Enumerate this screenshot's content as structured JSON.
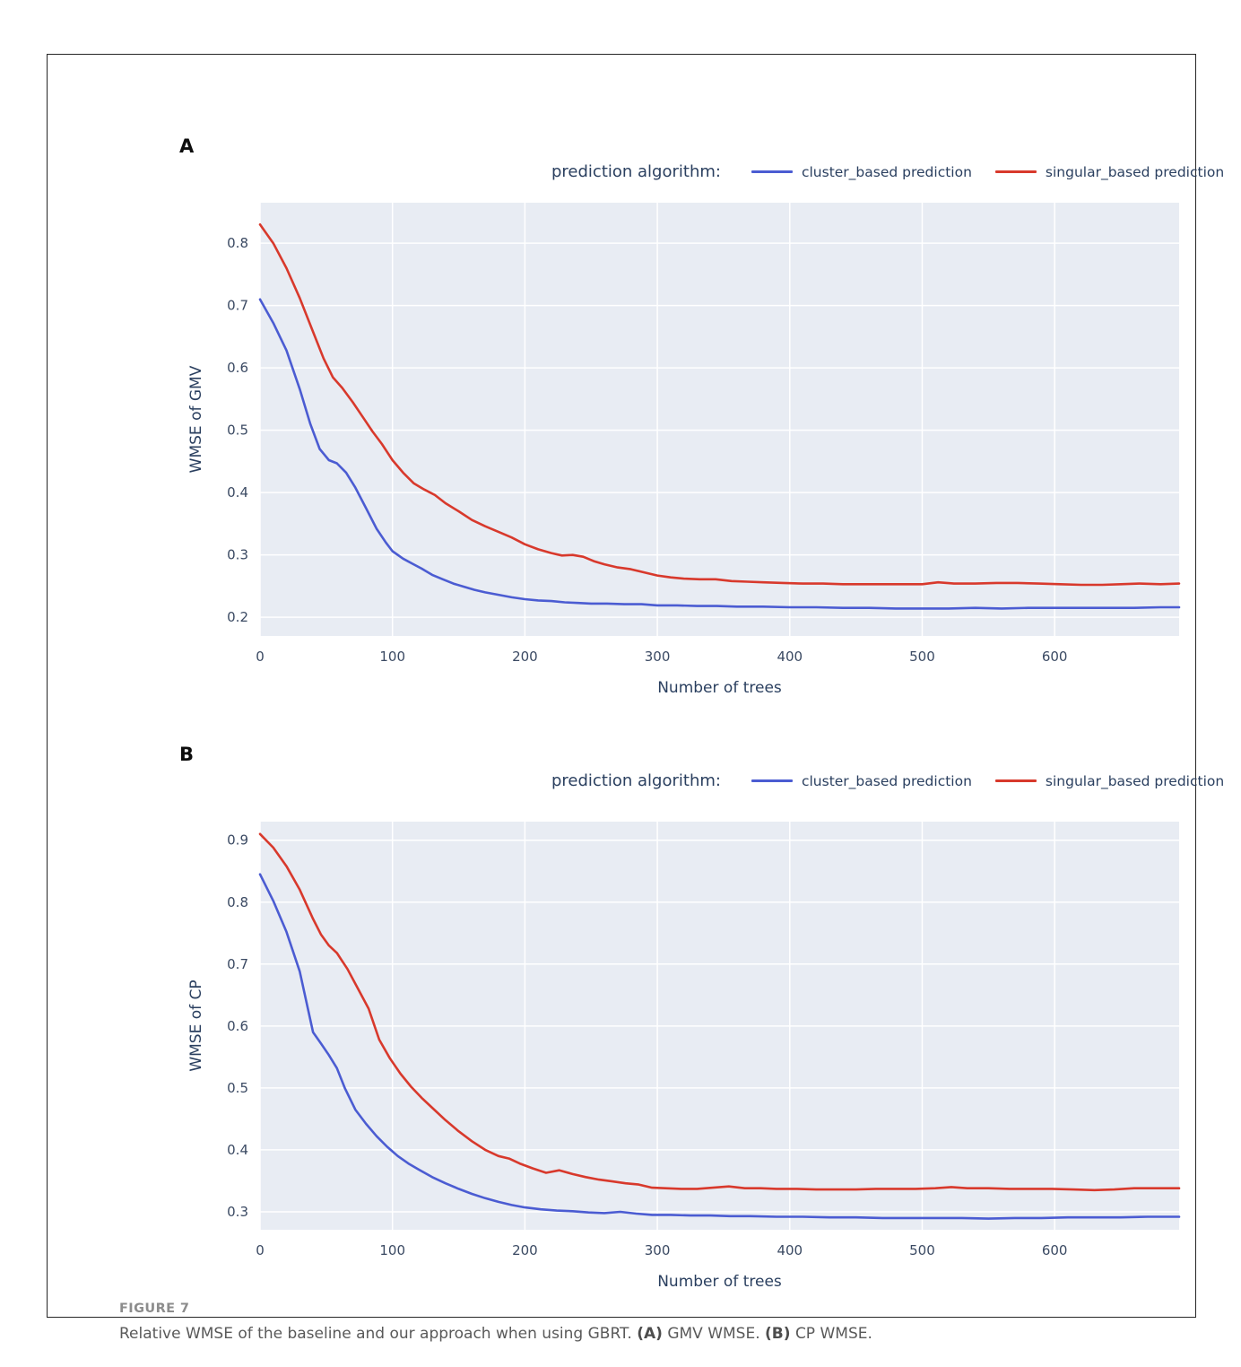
{
  "figure": {
    "panel_a_label": "A",
    "panel_b_label": "B",
    "caption_label": "FIGURE 7",
    "caption": {
      "text": "Relative WMSE of the baseline and our approach when using GBRT.",
      "a_marker": "(A)",
      "a_text": "GMV WMSE.",
      "b_marker": "(B)",
      "b_text": "CP WMSE."
    }
  },
  "legend": {
    "title": "prediction algorithm:",
    "entries": [
      {
        "label": "cluster_based prediction",
        "color": "#4b5cd2"
      },
      {
        "label": "singular_based prediction",
        "color": "#d8392c"
      }
    ]
  },
  "style": {
    "plot_bg": "#e8ecf3",
    "grid": "#ffffff",
    "axis_text": "#2a3f5f",
    "tick_text": "#3b4a63",
    "blue": "#4b5cd2",
    "red": "#d8392c"
  },
  "chart_data": [
    {
      "panel": "A",
      "type": "line",
      "xlabel": "Number of trees",
      "ylabel": "WMSE of GMV",
      "xlim": [
        0,
        694
      ],
      "ylim": [
        0.17,
        0.865
      ],
      "xticks": [
        0,
        100,
        200,
        300,
        400,
        500,
        600
      ],
      "yticks": [
        0.2,
        0.3,
        0.4,
        0.5,
        0.6,
        0.7,
        0.8
      ],
      "grid": true,
      "legend_position": "top",
      "series": [
        {
          "name": "cluster_based prediction",
          "color": "#4b5cd2",
          "x": [
            0,
            10,
            20,
            30,
            38,
            45,
            52,
            58,
            65,
            72,
            80,
            88,
            95,
            100,
            108,
            115,
            122,
            130,
            138,
            146,
            154,
            162,
            170,
            180,
            190,
            200,
            210,
            220,
            230,
            240,
            250,
            262,
            275,
            288,
            300,
            315,
            330,
            345,
            360,
            380,
            400,
            420,
            440,
            460,
            480,
            500,
            520,
            540,
            560,
            580,
            600,
            620,
            640,
            660,
            680,
            694
          ],
          "y": [
            0.71,
            0.672,
            0.628,
            0.566,
            0.51,
            0.47,
            0.452,
            0.447,
            0.432,
            0.408,
            0.375,
            0.342,
            0.32,
            0.306,
            0.294,
            0.286,
            0.278,
            0.268,
            0.261,
            0.254,
            0.249,
            0.244,
            0.24,
            0.236,
            0.232,
            0.229,
            0.227,
            0.226,
            0.224,
            0.223,
            0.222,
            0.222,
            0.221,
            0.221,
            0.219,
            0.219,
            0.218,
            0.218,
            0.217,
            0.217,
            0.216,
            0.216,
            0.215,
            0.215,
            0.214,
            0.214,
            0.214,
            0.215,
            0.214,
            0.215,
            0.215,
            0.215,
            0.215,
            0.215,
            0.216,
            0.216
          ]
        },
        {
          "name": "singular_based prediction",
          "color": "#d8392c",
          "x": [
            0,
            10,
            20,
            30,
            40,
            48,
            55,
            62,
            70,
            78,
            85,
            92,
            100,
            108,
            116,
            124,
            132,
            140,
            150,
            160,
            170,
            180,
            190,
            200,
            210,
            220,
            228,
            236,
            244,
            252,
            260,
            270,
            280,
            290,
            300,
            310,
            320,
            332,
            344,
            356,
            368,
            380,
            395,
            410,
            425,
            440,
            455,
            470,
            485,
            500,
            512,
            524,
            540,
            556,
            572,
            588,
            604,
            620,
            636,
            650,
            664,
            680,
            694
          ],
          "y": [
            0.83,
            0.8,
            0.76,
            0.712,
            0.658,
            0.615,
            0.585,
            0.568,
            0.545,
            0.52,
            0.498,
            0.478,
            0.452,
            0.432,
            0.415,
            0.405,
            0.396,
            0.383,
            0.37,
            0.356,
            0.346,
            0.337,
            0.328,
            0.317,
            0.309,
            0.303,
            0.299,
            0.3,
            0.297,
            0.29,
            0.285,
            0.28,
            0.277,
            0.272,
            0.267,
            0.264,
            0.262,
            0.261,
            0.261,
            0.258,
            0.257,
            0.256,
            0.255,
            0.254,
            0.254,
            0.253,
            0.253,
            0.253,
            0.253,
            0.253,
            0.256,
            0.254,
            0.254,
            0.255,
            0.255,
            0.254,
            0.253,
            0.252,
            0.252,
            0.253,
            0.254,
            0.253,
            0.254
          ]
        }
      ]
    },
    {
      "panel": "B",
      "type": "line",
      "xlabel": "Number of trees",
      "ylabel": "WMSE of CP",
      "xlim": [
        0,
        694
      ],
      "ylim": [
        0.271,
        0.93
      ],
      "xticks": [
        0,
        100,
        200,
        300,
        400,
        500,
        600
      ],
      "yticks": [
        0.3,
        0.4,
        0.5,
        0.6,
        0.7,
        0.8,
        0.9
      ],
      "grid": true,
      "legend_position": "top",
      "series": [
        {
          "name": "cluster_based prediction",
          "color": "#4b5cd2",
          "x": [
            0,
            10,
            20,
            30,
            40,
            46,
            52,
            58,
            64,
            72,
            80,
            88,
            96,
            104,
            112,
            120,
            130,
            140,
            150,
            160,
            170,
            180,
            190,
            200,
            212,
            224,
            236,
            248,
            260,
            272,
            284,
            296,
            310,
            325,
            340,
            355,
            370,
            390,
            410,
            430,
            450,
            470,
            490,
            510,
            530,
            550,
            570,
            590,
            610,
            630,
            650,
            670,
            694
          ],
          "y": [
            0.845,
            0.802,
            0.752,
            0.688,
            0.59,
            0.572,
            0.553,
            0.532,
            0.5,
            0.465,
            0.442,
            0.422,
            0.405,
            0.39,
            0.378,
            0.368,
            0.356,
            0.346,
            0.337,
            0.329,
            0.322,
            0.316,
            0.311,
            0.307,
            0.304,
            0.302,
            0.301,
            0.299,
            0.298,
            0.3,
            0.297,
            0.295,
            0.295,
            0.294,
            0.294,
            0.293,
            0.293,
            0.292,
            0.292,
            0.291,
            0.291,
            0.29,
            0.29,
            0.29,
            0.29,
            0.289,
            0.29,
            0.29,
            0.291,
            0.291,
            0.291,
            0.292,
            0.292
          ]
        },
        {
          "name": "singular_based prediction",
          "color": "#d8392c",
          "x": [
            0,
            10,
            20,
            30,
            40,
            46,
            52,
            58,
            66,
            74,
            82,
            90,
            98,
            106,
            114,
            122,
            130,
            140,
            150,
            160,
            170,
            180,
            188,
            196,
            206,
            216,
            226,
            236,
            246,
            256,
            266,
            276,
            286,
            296,
            306,
            318,
            330,
            342,
            354,
            366,
            378,
            390,
            405,
            420,
            435,
            450,
            465,
            480,
            495,
            510,
            522,
            534,
            550,
            566,
            582,
            598,
            614,
            630,
            645,
            660,
            675,
            694
          ],
          "y": [
            0.91,
            0.888,
            0.858,
            0.82,
            0.773,
            0.748,
            0.73,
            0.718,
            0.692,
            0.66,
            0.628,
            0.578,
            0.548,
            0.523,
            0.502,
            0.484,
            0.468,
            0.448,
            0.43,
            0.414,
            0.4,
            0.39,
            0.386,
            0.378,
            0.37,
            0.363,
            0.367,
            0.361,
            0.356,
            0.352,
            0.349,
            0.346,
            0.344,
            0.339,
            0.338,
            0.337,
            0.337,
            0.339,
            0.341,
            0.338,
            0.338,
            0.337,
            0.337,
            0.336,
            0.336,
            0.336,
            0.337,
            0.337,
            0.337,
            0.338,
            0.34,
            0.338,
            0.338,
            0.337,
            0.337,
            0.337,
            0.336,
            0.335,
            0.336,
            0.338,
            0.338,
            0.338
          ]
        }
      ]
    }
  ]
}
